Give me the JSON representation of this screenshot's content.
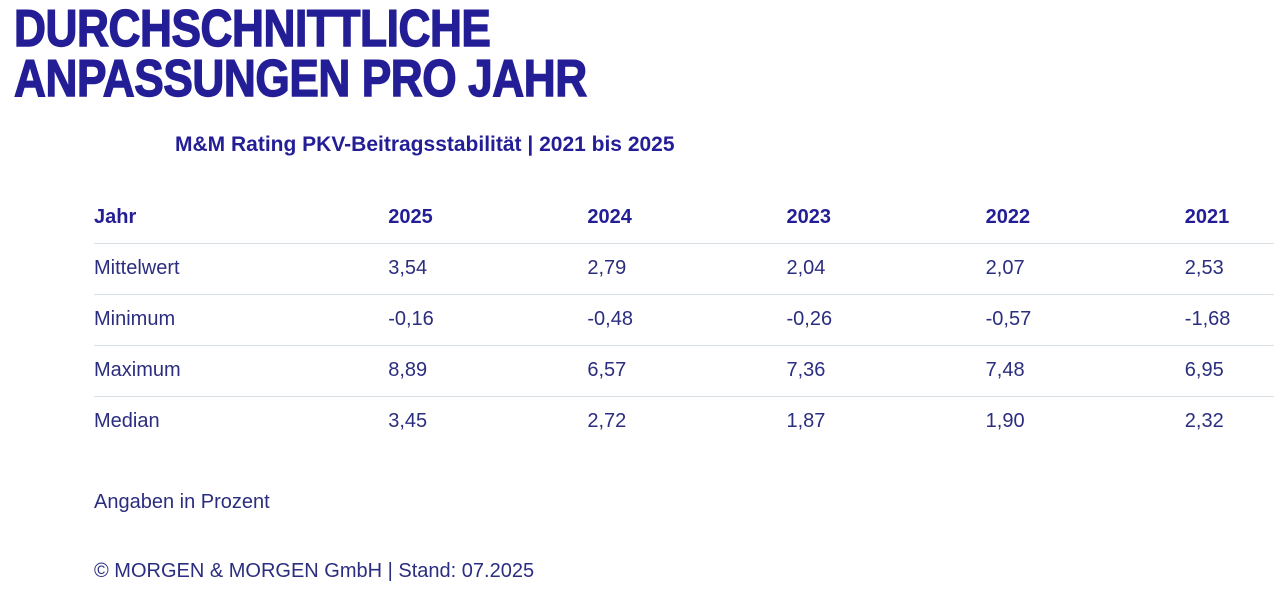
{
  "colors": {
    "brand_blue": "#241e96",
    "text_navy": "#2b2d7e",
    "divider": "#d8e0e6",
    "background": "#ffffff"
  },
  "page": {
    "title_lines": [
      "DURCHSCHNITTLICHE",
      "ANPASSUNGEN PRO JAHR"
    ],
    "subtitle": "M&M Rating PKV-Beitragsstabilität | 2021 bis 2025",
    "unit_note": "Angaben in Prozent",
    "copyright": "© MORGEN & MORGEN GmbH | Stand: 07.2025"
  },
  "chart_data": {
    "type": "table",
    "title": "DURCHSCHNITTLICHE ANPASSUNGEN PRO JAHR",
    "subtitle": "M&M Rating PKV-Beitragsstabilität | 2021 bis 2025",
    "unit": "Prozent",
    "columns": [
      "Jahr",
      "2025",
      "2024",
      "2023",
      "2022",
      "2021"
    ],
    "rows": [
      {
        "label": "Mittelwert",
        "values": [
          "3,54",
          "2,79",
          "2,04",
          "2,07",
          "2,53"
        ]
      },
      {
        "label": "Minimum",
        "values": [
          "-0,16",
          "-0,48",
          "-0,26",
          "-0,57",
          "-1,68"
        ]
      },
      {
        "label": "Maximum",
        "values": [
          "8,89",
          "6,57",
          "7,36",
          "7,48",
          "6,95"
        ]
      },
      {
        "label": "Median",
        "values": [
          "3,45",
          "2,72",
          "1,87",
          "1,90",
          "2,32"
        ]
      }
    ]
  }
}
